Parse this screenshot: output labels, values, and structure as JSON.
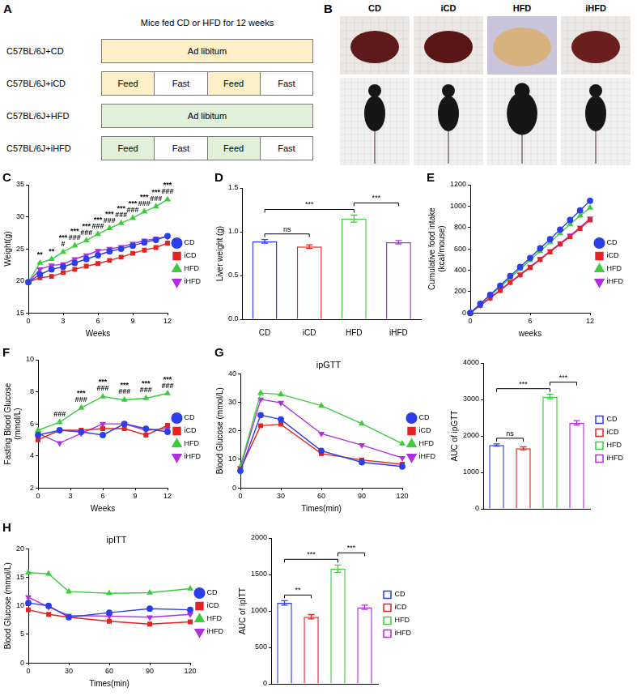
{
  "diagram": {
    "panel": "A",
    "title": "Mice fed CD or HFD for 12 weeks",
    "rows": [
      {
        "label": "C57BL/6J+CD",
        "segments": [
          {
            "text": "Ad libitum",
            "color": "#fdf0c6"
          }
        ]
      },
      {
        "label": "C57BL/6J+iCD",
        "segments": [
          {
            "text": "Feed",
            "color": "#fdf0c6"
          },
          {
            "text": "Fast",
            "color": "#ffffff"
          },
          {
            "text": "Feed",
            "color": "#fdf0c6"
          },
          {
            "text": "Fast",
            "color": "#ffffff"
          }
        ]
      },
      {
        "label": "C57BL/6J+HFD",
        "segments": [
          {
            "text": "Ad libitum",
            "color": "#e1f0d8"
          }
        ]
      },
      {
        "label": "C57BL/6J+iHFD",
        "segments": [
          {
            "text": "Feed",
            "color": "#e1f0d8"
          },
          {
            "text": "Fast",
            "color": "#ffffff"
          },
          {
            "text": "Feed",
            "color": "#e1f0d8"
          },
          {
            "text": "Fast",
            "color": "#ffffff"
          }
        ]
      }
    ]
  },
  "photos": {
    "panel": "B",
    "columns": [
      "CD",
      "iCD",
      "HFD",
      "iHFD"
    ]
  },
  "chart_data": [
    {
      "panel": "C",
      "type": "line",
      "x": [
        0,
        1,
        2,
        3,
        4,
        5,
        6,
        7,
        8,
        9,
        10,
        11,
        12
      ],
      "xlim": [
        0,
        12
      ],
      "xticks": [
        0,
        3,
        6,
        9,
        12
      ],
      "xlabel": "Weeks",
      "ylim": [
        15,
        35
      ],
      "yticks": [
        15,
        20,
        25,
        30,
        35
      ],
      "ylabel": "Weight(g)",
      "legend": "right",
      "grid": false,
      "series": [
        {
          "name": "CD",
          "color": "#2c3ee8",
          "marker": "circle",
          "line_style": "solid",
          "values": [
            19.8,
            21.0,
            21.8,
            22.2,
            22.8,
            23.4,
            24.0,
            24.6,
            25.0,
            25.5,
            26.0,
            26.4,
            27.0
          ]
        },
        {
          "name": "iCD",
          "color": "#e62222",
          "marker": "square",
          "line_style": "solid",
          "values": [
            19.8,
            20.5,
            20.7,
            21.3,
            21.8,
            22.3,
            22.7,
            23.2,
            23.7,
            24.3,
            24.8,
            25.2,
            25.9
          ]
        },
        {
          "name": "HFD",
          "color": "#3ccc3c",
          "marker": "triangle",
          "line_style": "solid",
          "values": [
            19.8,
            22.8,
            23.4,
            24.5,
            25.5,
            26.3,
            27.3,
            28.2,
            29.0,
            29.8,
            30.8,
            31.6,
            32.7
          ]
        },
        {
          "name": "iHFD",
          "color": "#b02ee0",
          "marker": "triangle-down",
          "line_style": "solid",
          "values": [
            19.8,
            21.8,
            22.4,
            22.6,
            23.4,
            24.0,
            24.7,
            25.0,
            25.3,
            25.8,
            26.3,
            26.6,
            26.9
          ]
        }
      ],
      "annotations": [
        {
          "x": 1,
          "text": [
            "**"
          ]
        },
        {
          "x": 2,
          "text": [
            "**"
          ]
        },
        {
          "x": 3,
          "text": [
            "***",
            "#"
          ]
        },
        {
          "x": 4,
          "text": [
            "***",
            "###"
          ]
        },
        {
          "x": 5,
          "text": [
            "***",
            "###"
          ]
        },
        {
          "x": 6,
          "text": [
            "***",
            "###"
          ]
        },
        {
          "x": 7,
          "text": [
            "***",
            "###"
          ]
        },
        {
          "x": 8,
          "text": [
            "***",
            "###"
          ]
        },
        {
          "x": 9,
          "text": [
            "***",
            "###"
          ]
        },
        {
          "x": 10,
          "text": [
            "***",
            "###"
          ]
        },
        {
          "x": 11,
          "text": [
            "***",
            "###"
          ]
        },
        {
          "x": 12,
          "text": [
            "***",
            "###"
          ]
        }
      ]
    },
    {
      "panel": "D",
      "type": "bar",
      "categories": [
        "CD",
        "iCD",
        "HFD",
        "iHFD"
      ],
      "values": [
        0.89,
        0.83,
        1.15,
        0.88
      ],
      "errors": [
        0.02,
        0.02,
        0.04,
        0.02
      ],
      "colors": [
        "#2c3ee8",
        "#e62222",
        "#3ccc3c",
        "#b02ee0"
      ],
      "ylim": [
        0,
        1.5
      ],
      "yticks": [
        {
          "value": 0,
          "label": "0.0"
        },
        0.5,
        {
          "value": 1,
          "label": "1.0"
        },
        1.5
      ],
      "ylabel": "Liver weight (g)",
      "grid": false,
      "comparisons": [
        {
          "from": "CD",
          "to": "iCD",
          "label": "ns"
        },
        {
          "from": "CD",
          "to": "HFD",
          "label": "***"
        },
        {
          "from": "HFD",
          "to": "iHFD",
          "label": "***"
        }
      ]
    },
    {
      "panel": "E",
      "type": "line",
      "x": [
        0,
        1,
        2,
        3,
        4,
        5,
        6,
        7,
        8,
        9,
        10,
        11,
        12
      ],
      "xlim": [
        0,
        12
      ],
      "xticks": [
        0,
        6,
        12
      ],
      "xlabel": "weeks",
      "ylim": [
        0,
        1200
      ],
      "yticks": [
        0,
        200,
        400,
        600,
        800,
        1000,
        1200
      ],
      "ylabel": "Cumulative food intake (kcal/mouse)",
      "legend": "right",
      "grid": false,
      "series": [
        {
          "name": "CD",
          "color": "#2c3ee8",
          "marker": "circle",
          "line_style": "solid",
          "values": [
            0,
            85,
            170,
            255,
            345,
            430,
            515,
            605,
            690,
            780,
            870,
            960,
            1050
          ]
        },
        {
          "name": "iCD",
          "color": "#e62222",
          "marker": "square",
          "line_style": "solid",
          "values": [
            0,
            70,
            140,
            210,
            285,
            355,
            425,
            500,
            570,
            645,
            715,
            790,
            870
          ]
        },
        {
          "name": "HFD",
          "color": "#3ccc3c",
          "marker": "triangle",
          "line_style": "solid",
          "values": [
            0,
            82,
            163,
            245,
            328,
            410,
            495,
            578,
            662,
            745,
            830,
            910,
            985
          ]
        },
        {
          "name": "iHFD",
          "color": "#b02ee0",
          "marker": "triangle-down",
          "line_style": "solid",
          "values": [
            0,
            72,
            143,
            215,
            290,
            360,
            433,
            505,
            580,
            650,
            725,
            800,
            885
          ]
        }
      ]
    },
    {
      "panel": "F",
      "type": "line",
      "x": [
        0,
        2,
        4,
        6,
        8,
        10,
        12
      ],
      "xlim": [
        0,
        12
      ],
      "xticks": [
        0,
        3,
        6,
        9,
        12
      ],
      "xlabel": "Weeks",
      "ylim": [
        2,
        10
      ],
      "yticks": [
        2,
        4,
        6,
        8,
        10
      ],
      "ylabel": "Fasting Blood Glucose (mmol/L)",
      "legend": "right",
      "grid": false,
      "series": [
        {
          "name": "CD",
          "color": "#2c3ee8",
          "marker": "circle",
          "line_style": "solid",
          "values": [
            5.3,
            5.6,
            5.5,
            5.3,
            6.0,
            5.7,
            5.5
          ]
        },
        {
          "name": "iCD",
          "color": "#e62222",
          "marker": "square",
          "line_style": "solid",
          "values": [
            5.0,
            5.6,
            5.6,
            5.7,
            5.7,
            5.3,
            5.9
          ]
        },
        {
          "name": "HFD",
          "color": "#3ccc3c",
          "marker": "triangle",
          "line_style": "solid",
          "values": [
            5.6,
            6.1,
            7.0,
            7.7,
            7.5,
            7.6,
            7.9
          ]
        },
        {
          "name": "iHFD",
          "color": "#b02ee0",
          "marker": "triangle-down",
          "line_style": "solid",
          "values": [
            5.4,
            4.8,
            5.4,
            6.0,
            6.0,
            5.6,
            5.7
          ]
        }
      ],
      "annotations": [
        {
          "x": 2,
          "text": [
            "###"
          ]
        },
        {
          "x": 4,
          "text": [
            "***",
            "###"
          ]
        },
        {
          "x": 6,
          "text": [
            "***",
            "###"
          ]
        },
        {
          "x": 8,
          "text": [
            "***",
            "###"
          ]
        },
        {
          "x": 10,
          "text": [
            "***",
            "###"
          ]
        },
        {
          "x": 12,
          "text": [
            "***",
            "###"
          ]
        }
      ]
    },
    {
      "panel": "G",
      "type": "line",
      "title": "ipGTT",
      "x": [
        0,
        15,
        30,
        60,
        90,
        120
      ],
      "xlim": [
        0,
        120
      ],
      "xticks": [
        0,
        30,
        60,
        90,
        120
      ],
      "xlabel": "Times(min)",
      "ylim": [
        0,
        40
      ],
      "yticks": [
        0,
        10,
        20,
        30,
        40
      ],
      "ylabel": "Blood Glucose (mmol/L)",
      "legend": "right",
      "grid": false,
      "series": [
        {
          "name": "CD",
          "color": "#2c3ee8",
          "marker": "circle",
          "line_style": "solid",
          "values": [
            6.0,
            25.5,
            24.0,
            13.0,
            9.0,
            7.5
          ]
        },
        {
          "name": "iCD",
          "color": "#e62222",
          "marker": "square",
          "line_style": "solid",
          "values": [
            6.5,
            21.8,
            22.3,
            12.0,
            9.8,
            8.3
          ]
        },
        {
          "name": "HFD",
          "color": "#3ccc3c",
          "marker": "triangle",
          "line_style": "solid",
          "values": [
            7.5,
            33.2,
            32.8,
            28.8,
            22.5,
            15.5
          ]
        },
        {
          "name": "iHFD",
          "color": "#b02ee0",
          "marker": "triangle-down",
          "line_style": "solid",
          "values": [
            7.0,
            31.0,
            29.8,
            19.0,
            15.0,
            10.5
          ]
        }
      ]
    },
    {
      "type": "bar",
      "categories": [
        "CD",
        "iCD",
        "HFD",
        "iHFD"
      ],
      "values": [
        1750,
        1660,
        3080,
        2360
      ],
      "errors": [
        30,
        40,
        60,
        60
      ],
      "colors": [
        "#2c3ee8",
        "#e62222",
        "#3ccc3c",
        "#b02ee0"
      ],
      "ylim": [
        0,
        4000
      ],
      "yticks": [
        0,
        1000,
        2000,
        3000,
        4000
      ],
      "ylabel": "AUC of ipGTT",
      "legend": "right",
      "tick_labels": "y",
      "grid": false,
      "comparisons": [
        {
          "from": "CD",
          "to": "iCD",
          "label": "ns"
        },
        {
          "from": "CD",
          "to": "HFD",
          "label": "***"
        },
        {
          "from": "HFD",
          "to": "iHFD",
          "label": "***"
        }
      ]
    },
    {
      "panel": "H",
      "type": "line",
      "title": "ipITT",
      "x": [
        0,
        15,
        30,
        60,
        90,
        120
      ],
      "xlim": [
        0,
        120
      ],
      "xticks": [
        0,
        30,
        60,
        90,
        120
      ],
      "xlabel": "Times(min)",
      "ylim": [
        0,
        20
      ],
      "yticks": [
        0,
        5,
        10,
        15,
        20
      ],
      "ylabel": "Blood Glucose (mmol/L)",
      "legend": "right",
      "grid": false,
      "series": [
        {
          "name": "CD",
          "color": "#2c3ee8",
          "marker": "circle",
          "line_style": "solid",
          "values": [
            10.5,
            10.0,
            8.0,
            8.8,
            9.5,
            9.3
          ]
        },
        {
          "name": "iCD",
          "color": "#e62222",
          "marker": "square",
          "line_style": "solid",
          "values": [
            9.3,
            8.5,
            8.0,
            7.3,
            6.8,
            7.2
          ]
        },
        {
          "name": "HFD",
          "color": "#3ccc3c",
          "marker": "triangle",
          "line_style": "solid",
          "values": [
            15.8,
            15.6,
            12.5,
            12.2,
            12.3,
            13.0
          ]
        },
        {
          "name": "iHFD",
          "color": "#b02ee0",
          "marker": "triangle-down",
          "line_style": "solid",
          "values": [
            11.5,
            9.8,
            8.3,
            8.2,
            8.0,
            8.5
          ]
        }
      ]
    },
    {
      "type": "bar",
      "categories": [
        "CD",
        "iCD",
        "HFD",
        "iHFD"
      ],
      "values": [
        1110,
        920,
        1580,
        1050
      ],
      "errors": [
        30,
        30,
        50,
        30
      ],
      "colors": [
        "#2c3ee8",
        "#e62222",
        "#3ccc3c",
        "#b02ee0"
      ],
      "ylim": [
        0,
        2000
      ],
      "yticks": [
        0,
        500,
        1000,
        1500,
        2000
      ],
      "ylabel": "AUC of ipITT",
      "legend": "right",
      "tick_labels": "y",
      "grid": false,
      "comparisons": [
        {
          "from": "CD",
          "to": "iCD",
          "label": "**"
        },
        {
          "from": "CD",
          "to": "HFD",
          "label": "***"
        },
        {
          "from": "HFD",
          "to": "iHFD",
          "label": "***"
        }
      ]
    }
  ]
}
